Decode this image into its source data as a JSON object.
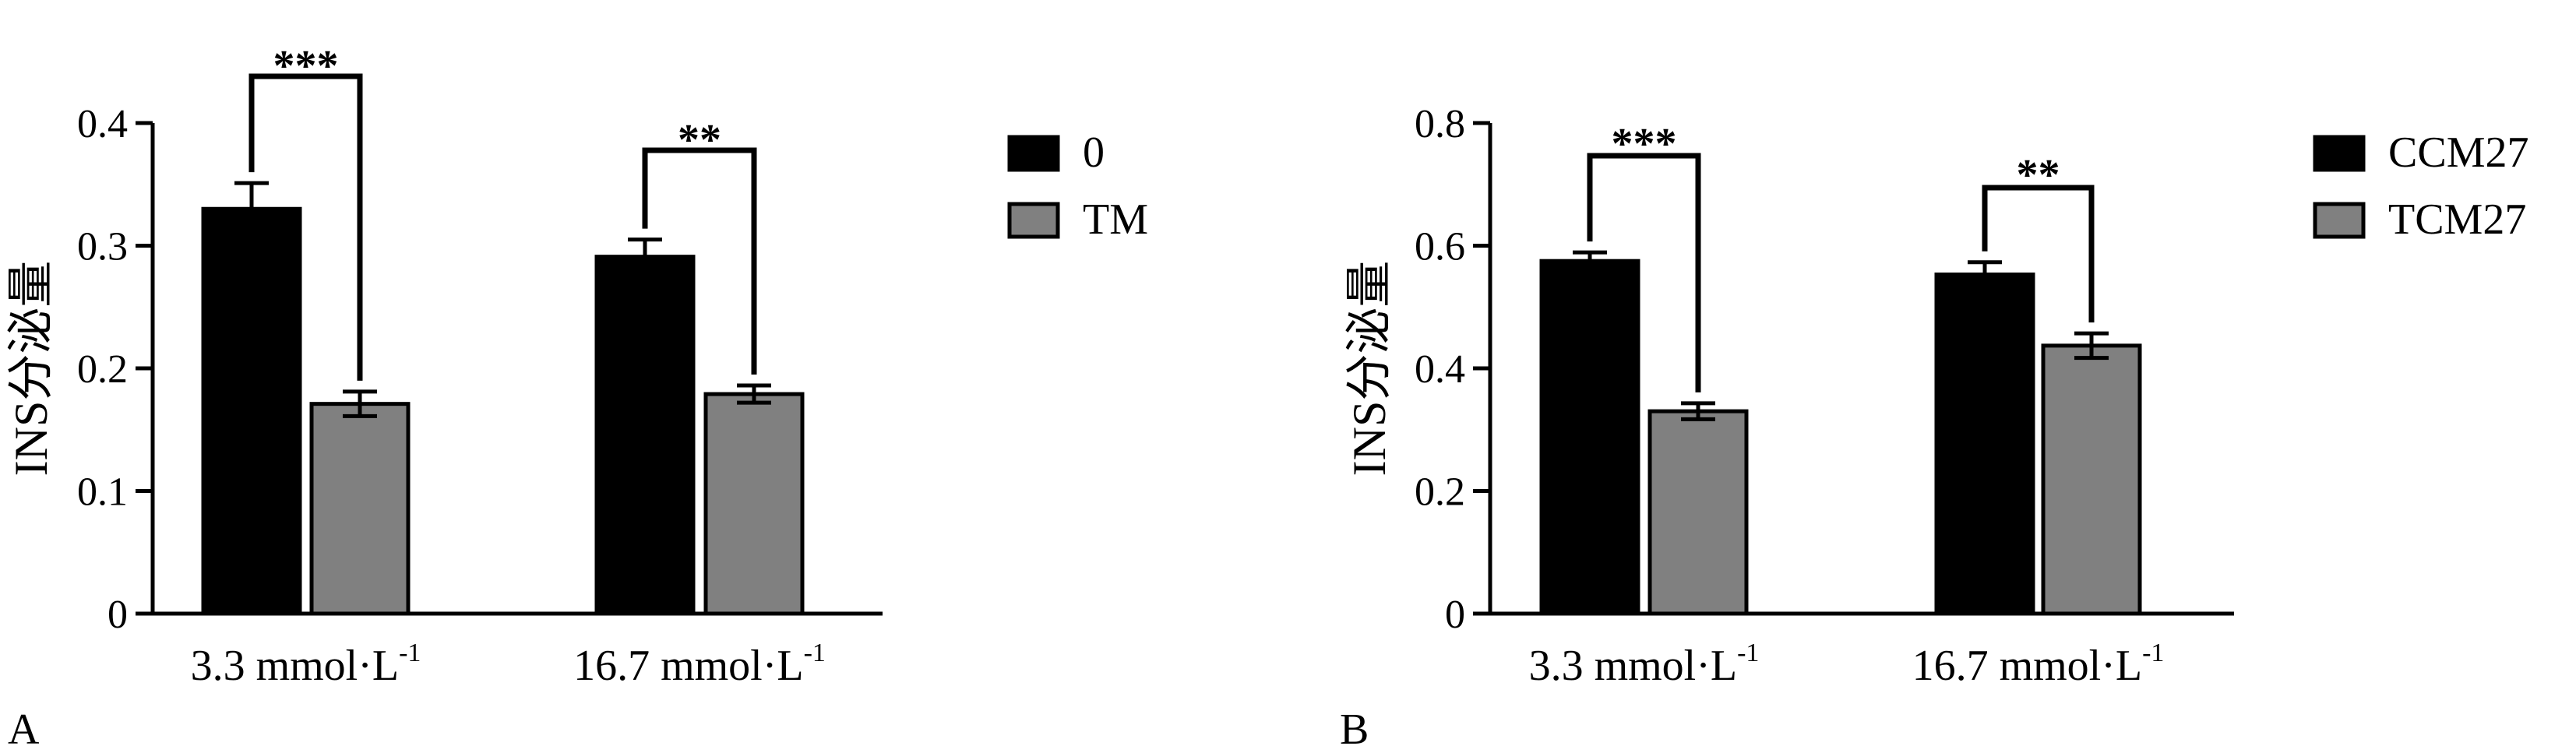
{
  "chart_data": [
    {
      "panel_label": "A",
      "type": "bar",
      "ylabel": "INS分泌量",
      "ylim": [
        0,
        0.4
      ],
      "yticks": [
        "0",
        "0.1",
        "0.2",
        "0.3",
        "0.4"
      ],
      "yticks_values": [
        0,
        0.1,
        0.2,
        0.3,
        0.4
      ],
      "categories": [
        {
          "main": "3.3 mmol·L",
          "sup": "-1"
        },
        {
          "main": "16.7 mmol·L",
          "sup": "-1"
        }
      ],
      "series": [
        {
          "name": "0",
          "color": "#000000",
          "values": [
            0.33,
            0.291
          ],
          "errors": [
            0.021,
            0.014
          ]
        },
        {
          "name": "TM",
          "color": "#808080",
          "values": [
            0.171,
            0.179
          ],
          "errors": [
            0.01,
            0.007
          ]
        }
      ],
      "significance": [
        "***",
        "**"
      ],
      "legend_position": "right",
      "grid": false
    },
    {
      "panel_label": "B",
      "type": "bar",
      "ylabel": "INS分泌量",
      "ylim": [
        0,
        0.8
      ],
      "yticks": [
        "0",
        "0.2",
        "0.4",
        "0.6",
        "0.8"
      ],
      "yticks_values": [
        0,
        0.2,
        0.4,
        0.6,
        0.8
      ],
      "categories": [
        {
          "main": "3.3 mmol·L",
          "sup": "-1"
        },
        {
          "main": "16.7 mmol·L",
          "sup": "-1"
        }
      ],
      "series": [
        {
          "name": "CCM27",
          "color": "#000000",
          "values": [
            0.575,
            0.553
          ],
          "errors": [
            0.014,
            0.02
          ]
        },
        {
          "name": "TCM27",
          "color": "#808080",
          "values": [
            0.33,
            0.437
          ],
          "errors": [
            0.013,
            0.02
          ]
        }
      ],
      "significance": [
        "***",
        "**"
      ],
      "legend_position": "right",
      "grid": false
    }
  ]
}
